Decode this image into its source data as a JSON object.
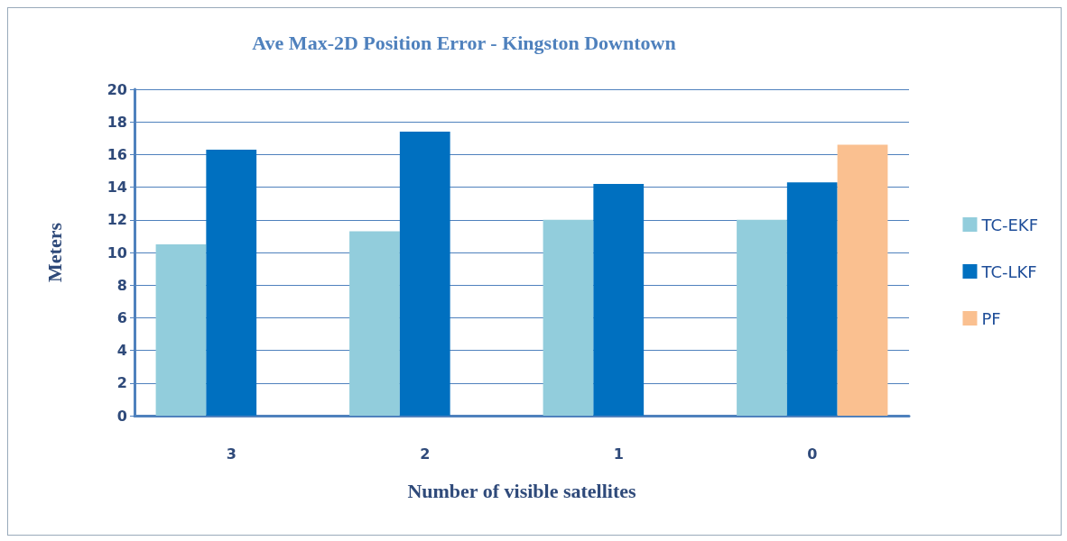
{
  "chart_data": {
    "type": "bar",
    "title": "Ave Max-2D Position Error - Kingston Downtown",
    "xlabel": "Number of visible satellites",
    "ylabel": "Meters",
    "categories": [
      "3",
      "2",
      "1",
      "0"
    ],
    "series": [
      {
        "name": "TC-EKF",
        "color": "#92cddc",
        "values": [
          10.5,
          11.3,
          12.0,
          12.0
        ]
      },
      {
        "name": "TC-LKF",
        "color": "#0070c0",
        "values": [
          16.3,
          17.4,
          14.2,
          14.3
        ]
      },
      {
        "name": "PF",
        "color": "#fac090",
        "values": [
          null,
          null,
          null,
          16.6
        ]
      }
    ],
    "ylim": [
      0,
      20
    ],
    "yticks": [
      0,
      2,
      4,
      6,
      8,
      10,
      12,
      14,
      16,
      18,
      20
    ],
    "grid": "y",
    "legend": "right"
  }
}
